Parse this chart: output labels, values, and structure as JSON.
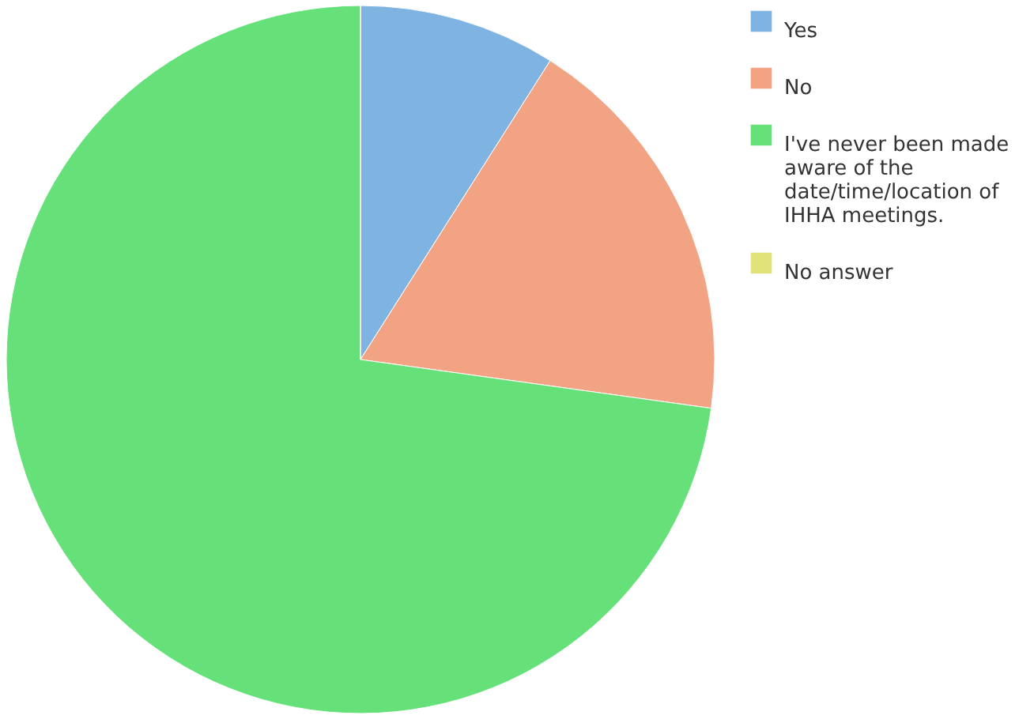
{
  "chart_data": {
    "type": "pie",
    "categories": [
      "Yes",
      "No",
      "I've never been made aware of the date/time/location of IHHA meetings.",
      "No answer"
    ],
    "values": [
      9.0,
      18.2,
      72.8,
      0
    ],
    "colors": [
      "#7eb3e2",
      "#f1a383",
      "#66e17a",
      "#e1e37a"
    ],
    "legend": "top right"
  }
}
